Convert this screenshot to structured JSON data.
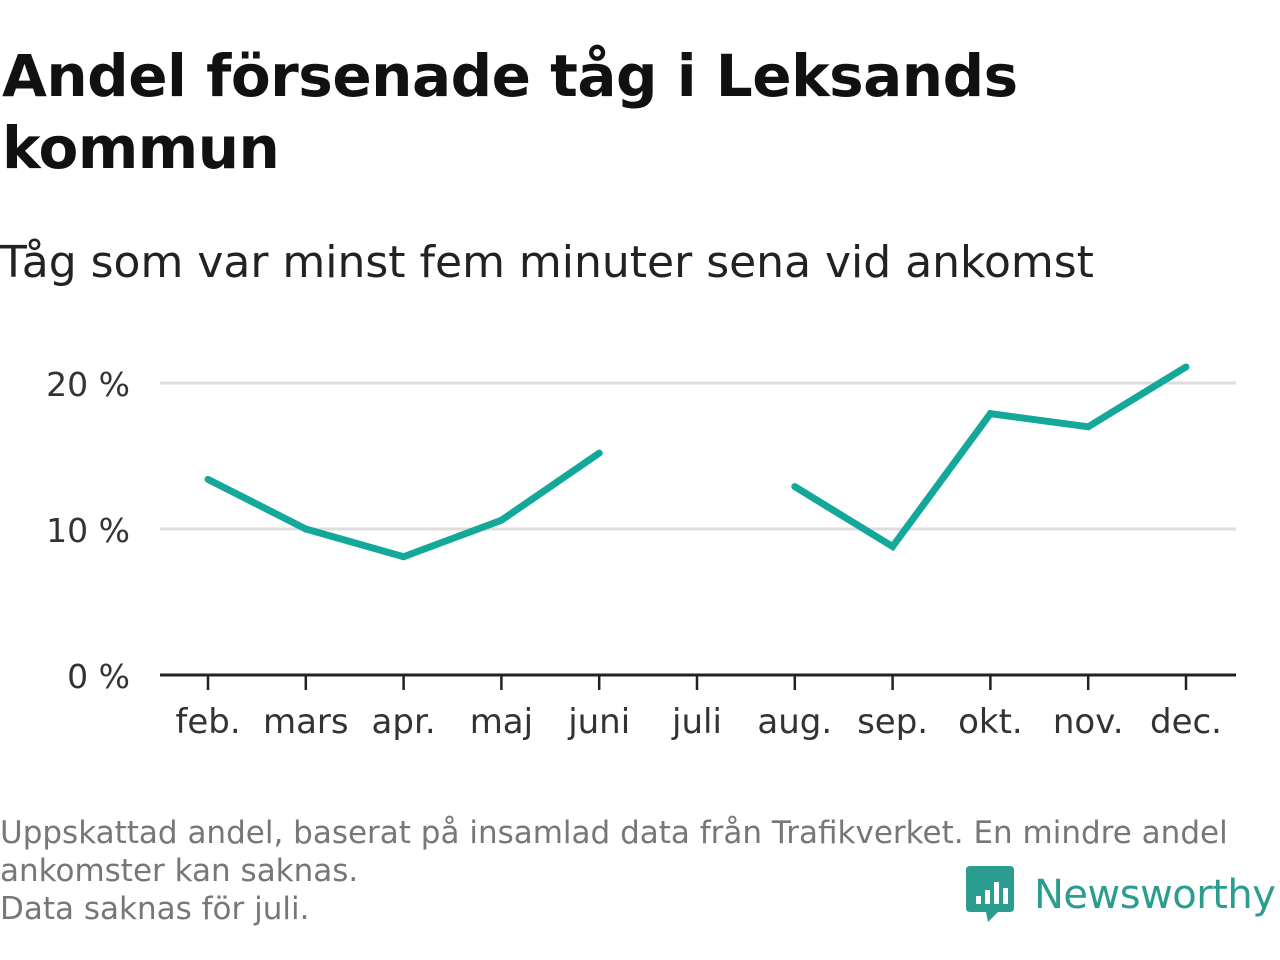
{
  "header": {
    "title_line1": "Andel försenade tåg i Leksands",
    "title_line2": "kommun",
    "subtitle": "Tåg som var minst fem minuter sena vid ankomst"
  },
  "footer": {
    "note_line1": "Uppskattad andel, baserat på insamlad data från Trafikverket. En mindre andel",
    "note_line2": "ankomster kan saknas.",
    "note_line3": "Data saknas för juli.",
    "brand_name": "Newsworthy"
  },
  "colors": {
    "line": "#14a89a",
    "grid": "#dddddd",
    "axis": "#222222",
    "brand": "#2a9d8f"
  },
  "chart_data": {
    "type": "line",
    "title": "Andel försenade tåg i Leksands kommun",
    "subtitle": "Tåg som var minst fem minuter sena vid ankomst",
    "categories": [
      "feb.",
      "mars",
      "apr.",
      "maj",
      "juni",
      "juli",
      "aug.",
      "sep.",
      "okt.",
      "nov.",
      "dec."
    ],
    "values": [
      13.4,
      10.0,
      8.1,
      10.6,
      15.2,
      null,
      12.9,
      8.8,
      17.9,
      17.0,
      21.1
    ],
    "unit": "%",
    "yticks": [
      0,
      10,
      20
    ],
    "ytick_labels": [
      "0 %",
      "10 %",
      "20 %"
    ],
    "ylim": [
      0,
      20
    ],
    "grid": true,
    "legend": "none"
  }
}
